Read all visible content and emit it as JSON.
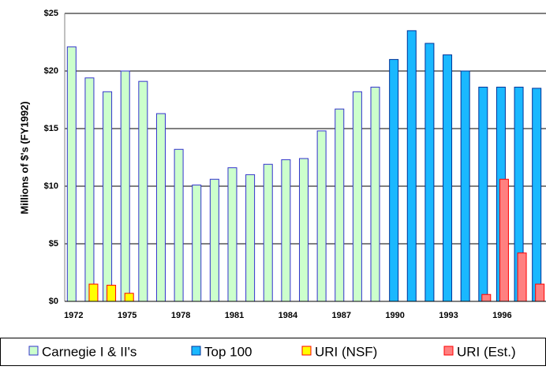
{
  "chart_data": {
    "type": "bar",
    "y_label": "Millions of $'s (FY1992)",
    "categories": [
      "1972",
      null,
      null,
      "1975",
      null,
      null,
      "1978",
      null,
      null,
      "1981",
      null,
      null,
      "1984",
      null,
      null,
      "1987",
      null,
      null,
      "1990",
      null,
      null,
      "1993",
      null,
      null,
      "1996",
      null,
      null
    ],
    "series": [
      {
        "name": "Carnegie I & II's",
        "color": "#ccffcc",
        "values": [
          22.1,
          19.4,
          18.2,
          20.0,
          19.1,
          16.3,
          13.2,
          10.1,
          10.6,
          11.6,
          11.0,
          11.9,
          12.3,
          12.4,
          14.8,
          16.7,
          18.2,
          18.6,
          null,
          null,
          null,
          null,
          null,
          null,
          null,
          null,
          null
        ]
      },
      {
        "name": "Top 100",
        "color": "#1ab8ff",
        "values": [
          null,
          null,
          null,
          null,
          null,
          null,
          null,
          null,
          null,
          null,
          null,
          null,
          null,
          null,
          null,
          null,
          null,
          null,
          21.0,
          23.5,
          22.4,
          21.4,
          20.0,
          18.6,
          18.6,
          18.6,
          18.5
        ]
      },
      {
        "name": "URI (NSF)",
        "color": "#ffff00",
        "values": [
          null,
          1.5,
          1.4,
          0.7,
          null,
          null,
          null,
          null,
          null,
          null,
          null,
          null,
          null,
          null,
          null,
          null,
          null,
          null,
          null,
          null,
          null,
          null,
          null,
          null,
          null,
          null,
          null
        ]
      },
      {
        "name": "URI (Est.)",
        "color": "#ff8080",
        "values": [
          null,
          null,
          null,
          null,
          null,
          null,
          null,
          null,
          null,
          null,
          null,
          null,
          null,
          null,
          null,
          null,
          null,
          null,
          null,
          null,
          null,
          null,
          null,
          0.6,
          10.6,
          4.2,
          1.5
        ]
      }
    ],
    "ylim": [
      0,
      25
    ],
    "yticks": [
      {
        "value": 0,
        "label": "$0"
      },
      {
        "value": 5,
        "label": "$5"
      },
      {
        "value": 10,
        "label": "$10"
      },
      {
        "value": 15,
        "label": "$15"
      },
      {
        "value": 20,
        "label": "$20"
      },
      {
        "value": 25,
        "label": "$25"
      }
    ],
    "grid": true
  }
}
